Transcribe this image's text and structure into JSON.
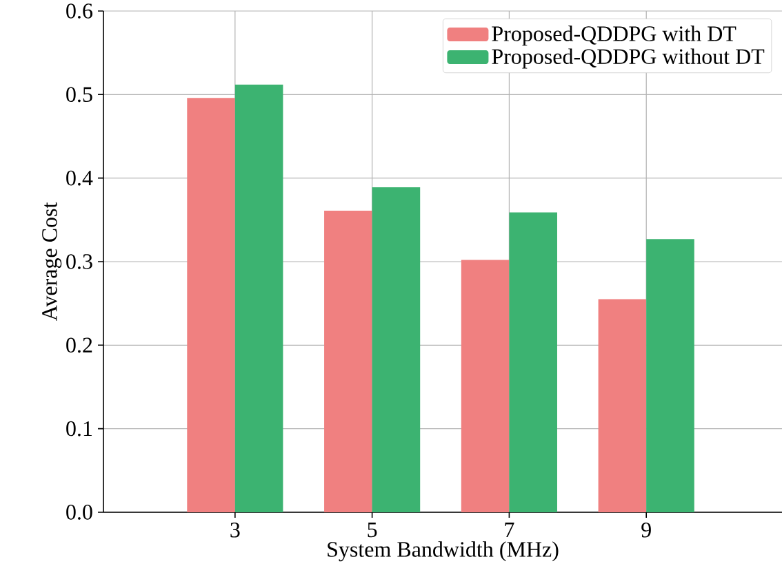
{
  "chart_data": {
    "type": "bar",
    "xlabel": "System Bandwidth (MHz)",
    "ylabel": "Average Cost",
    "categories": [
      "3",
      "5",
      "7",
      "9"
    ],
    "series": [
      {
        "name": "Proposed-QDDPG with DT",
        "color": "#f08080",
        "values": [
          0.496,
          0.361,
          0.302,
          0.255
        ]
      },
      {
        "name": "Proposed-QDDPG without DT",
        "color": "#3cb371",
        "values": [
          0.512,
          0.389,
          0.359,
          0.327
        ]
      }
    ],
    "ylim": [
      0,
      0.6
    ],
    "yticks": [
      {
        "value": 0,
        "label": "0.0"
      },
      0.1,
      0.2,
      0.3,
      0.4,
      0.5,
      0.6
    ],
    "grid": true,
    "legend": "top right"
  }
}
